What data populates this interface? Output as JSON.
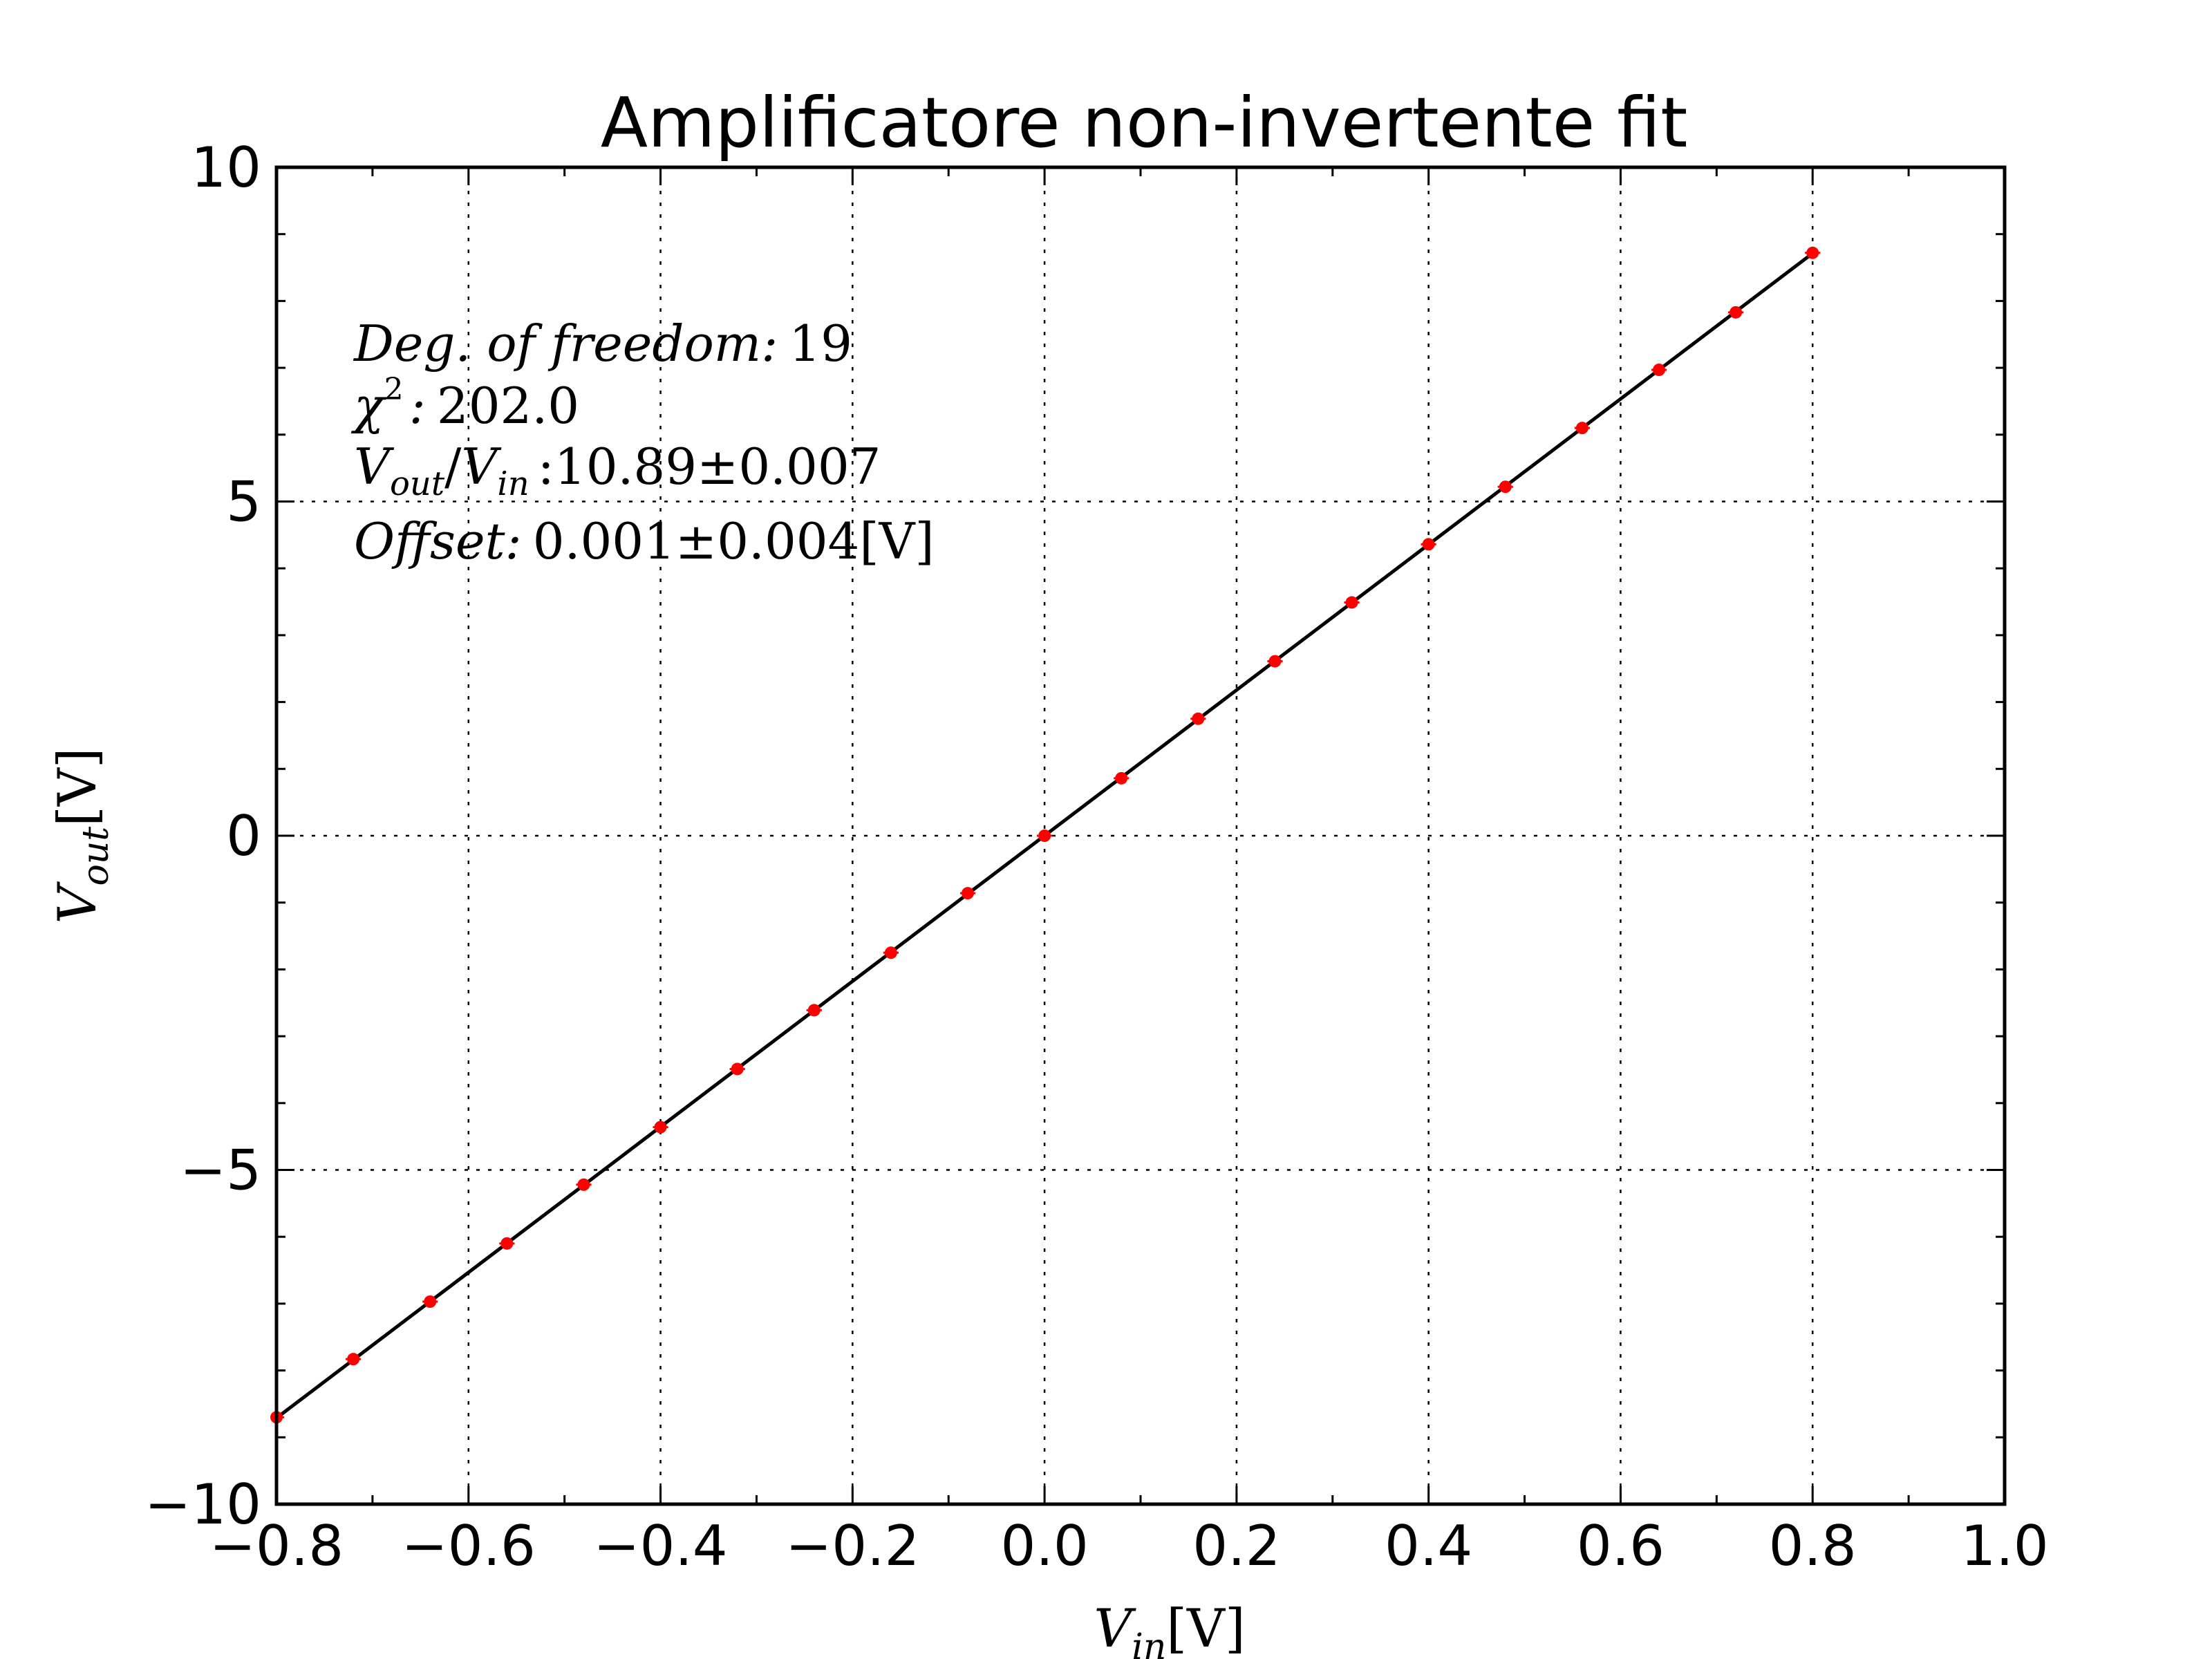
{
  "chart_data": {
    "type": "scatter",
    "title": "Amplificatore non-invertente fit",
    "xlabel": {
      "main": "V",
      "sub": "in",
      "unit": "[V]"
    },
    "ylabel": {
      "main": "V",
      "sub": "out",
      "unit": "[V]"
    },
    "xlim": [
      -0.8,
      1.0
    ],
    "ylim": [
      -10,
      10
    ],
    "xticks": [
      -0.8,
      -0.6,
      -0.4,
      -0.2,
      0.0,
      0.2,
      0.4,
      0.6,
      0.8,
      1.0
    ],
    "xtick_labels": [
      "−0.8",
      "−0.6",
      "−0.4",
      "−0.2",
      "0.0",
      "0.2",
      "0.4",
      "0.6",
      "0.8",
      "1.0"
    ],
    "yticks": [
      -10,
      -5,
      0,
      5,
      10
    ],
    "ytick_labels": [
      "−10",
      "−5",
      "0",
      "5",
      "10"
    ],
    "grid": true,
    "series": [
      {
        "kind": "errorbar",
        "color": "#ff0000",
        "x": [
          -0.8,
          -0.72,
          -0.64,
          -0.56,
          -0.48,
          -0.4,
          -0.32,
          -0.24,
          -0.16,
          -0.08,
          0.0,
          0.08,
          0.16,
          0.24,
          0.32,
          0.4,
          0.48,
          0.56,
          0.64,
          0.72,
          0.8
        ],
        "y": [
          -8.7,
          -7.83,
          -6.97,
          -6.1,
          -5.22,
          -4.36,
          -3.49,
          -2.61,
          -1.75,
          -0.86,
          0.0,
          0.86,
          1.75,
          2.61,
          3.49,
          4.36,
          5.22,
          6.1,
          6.97,
          7.83,
          8.72
        ],
        "xerr": 0.008
      },
      {
        "kind": "fit-line",
        "color": "#000000",
        "x": [
          -0.8,
          0.8
        ],
        "y": [
          -8.711,
          8.713
        ]
      }
    ],
    "annotations": [
      {
        "label": "Deg. of freedom:",
        "value": "19"
      },
      {
        "label": "χ",
        "sup": "2",
        "sep": ":",
        "value": "202.0"
      },
      {
        "label": "V",
        "sub1": "out",
        "slash": "/",
        "label2": "V",
        "sub2": "in",
        "sep": ":",
        "value": "10.89±0.007"
      },
      {
        "label": "Offset:",
        "value": "0.001±0.004[V]"
      }
    ]
  }
}
